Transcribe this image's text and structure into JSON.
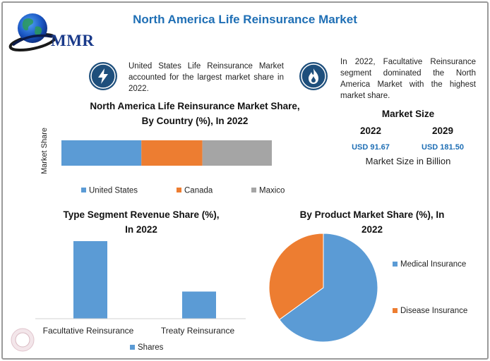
{
  "header": {
    "title": "North America Life Reinsurance Market",
    "brand": "MMR"
  },
  "notes": {
    "left": "United States Life Reinsurance Market accounted for the largest market share in 2022.",
    "right": "In 2022, Facultative Reinsurance segment dominated the North America Market with the highest market share.",
    "left_icon": "lightning-icon",
    "right_icon": "flame-icon"
  },
  "market_size": {
    "title": "Market Size",
    "years": [
      "2022",
      "2029"
    ],
    "values": [
      "USD 91.67",
      "USD 181.50"
    ],
    "unit": "Market Size in Billion"
  },
  "colors": {
    "blue": "#5b9bd5",
    "orange": "#ed7d31",
    "gray": "#a5a5a5",
    "title_blue": "#1f6fb5",
    "badge": "#1e4f7c"
  },
  "chart_data": [
    {
      "type": "bar",
      "orientation": "horizontal",
      "stacked": true,
      "title": "North America Life Reinsurance Market Share, By Country (%), In 2022",
      "title_lines": [
        "North America Life Reinsurance Market Share,",
        "By Country (%), In 2022"
      ],
      "ylabel": "Market Share",
      "categories": [
        ""
      ],
      "series": [
        {
          "name": "United States",
          "values": [
            38
          ],
          "color": "#5b9bd5"
        },
        {
          "name": "Canada",
          "values": [
            29
          ],
          "color": "#ed7d31"
        },
        {
          "name": "Maxico",
          "values": [
            33
          ],
          "color": "#a5a5a5"
        }
      ],
      "xlim": [
        0,
        100
      ],
      "legend": "bottom",
      "grid": false
    },
    {
      "type": "bar",
      "title": "Type Segment Revenue Share (%), In 2022",
      "title_lines": [
        "Type Segment Revenue Share (%),",
        "In 2022"
      ],
      "categories": [
        "Facultative Reinsurance",
        "Treaty Reinsurance"
      ],
      "series": [
        {
          "name": "Shares",
          "values": [
            100,
            35
          ],
          "color": "#5b9bd5"
        }
      ],
      "ylim": [
        0,
        100
      ],
      "legend": "bottom",
      "grid": false
    },
    {
      "type": "pie",
      "title": "By Product Market Share (%), In 2022",
      "title_lines": [
        "By Product Market Share (%), In",
        "2022"
      ],
      "labels": [
        "Medical Insurance",
        "Disease Insurance"
      ],
      "values": [
        65,
        35
      ],
      "colors": [
        "#5b9bd5",
        "#ed7d31"
      ],
      "legend": "right"
    }
  ]
}
